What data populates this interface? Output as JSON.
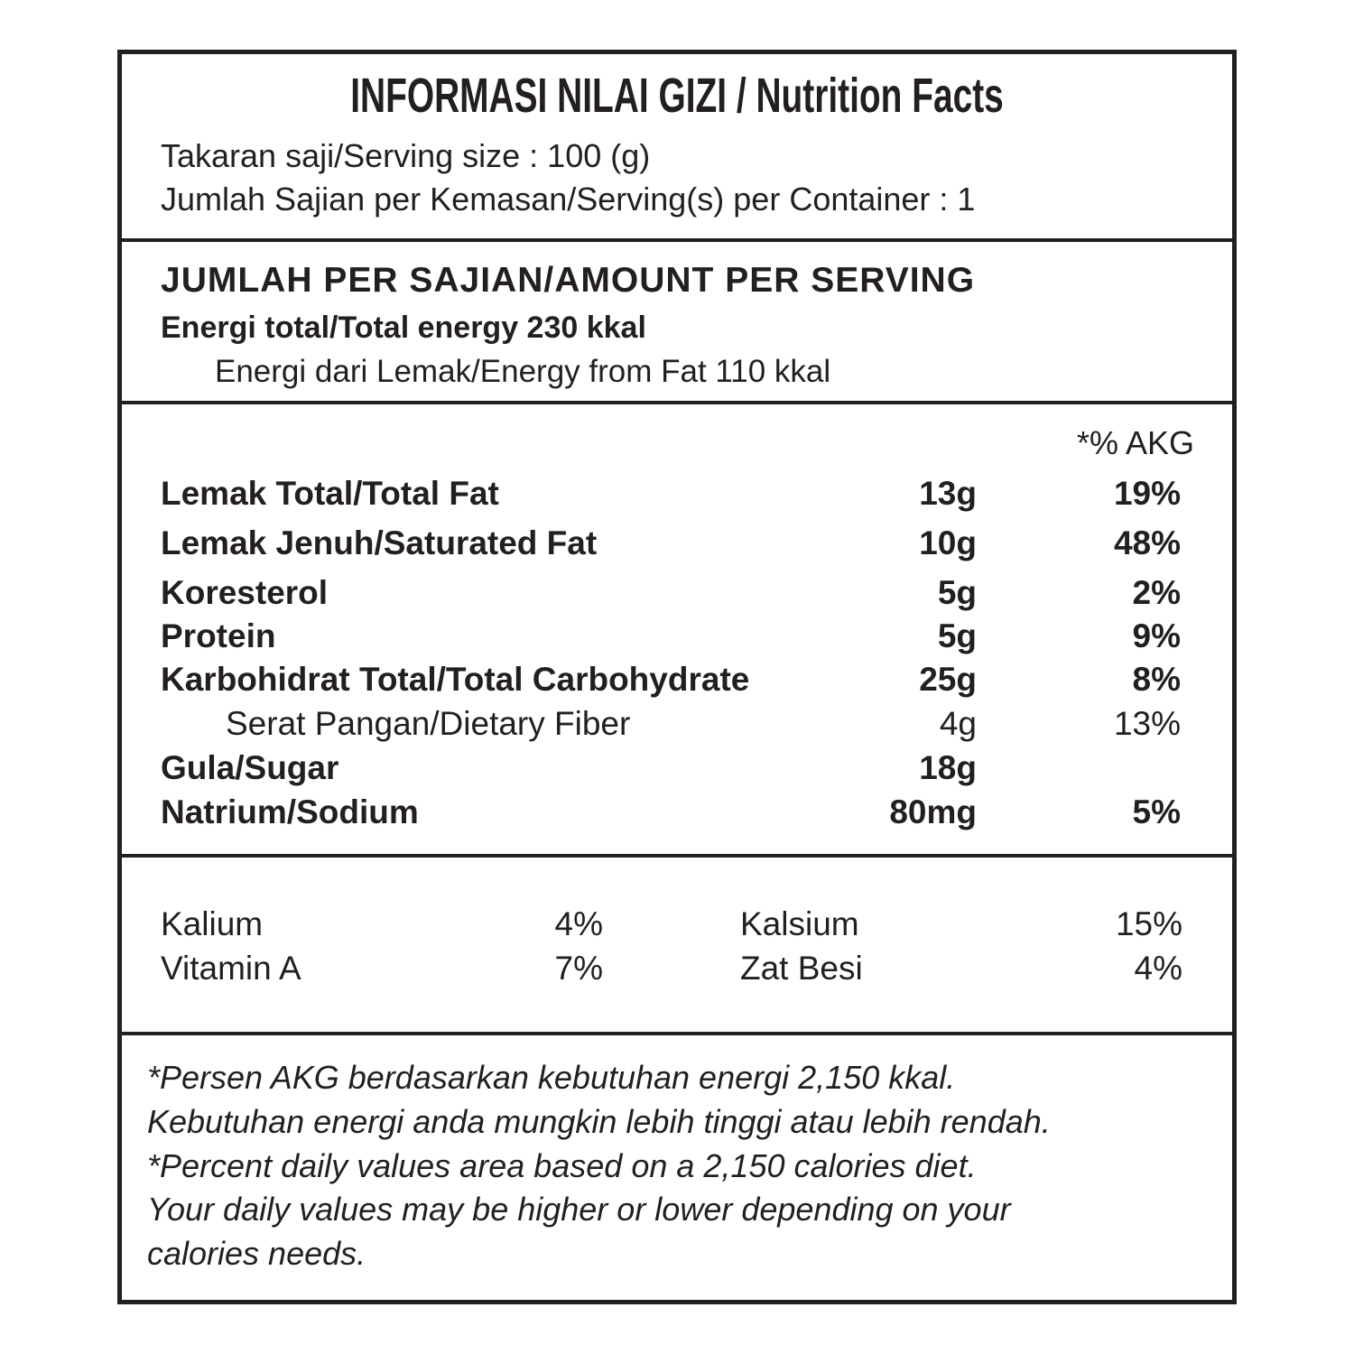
{
  "header": {
    "title": "INFORMASI NILAI GIZI / Nutrition Facts",
    "serving_size": "Takaran saji/Serving size : 100 (g)",
    "servings_per_container": "Jumlah Sajian per Kemasan/Serving(s) per Container : 1"
  },
  "amount": {
    "heading": "JUMLAH PER SAJIAN/AMOUNT PER SERVING",
    "total_energy": "Energi total/Total energy 230 kkal",
    "energy_from_fat": "Energi dari Lemak/Energy from Fat 110 kkal"
  },
  "nutrients": {
    "akg_header": "*% AKG",
    "rows": [
      {
        "label": "Lemak Total/Total Fat",
        "amount": "13g",
        "akg": "19%"
      },
      {
        "label": "Lemak Jenuh/Saturated Fat",
        "amount": "10g",
        "akg": "48%"
      },
      {
        "label": "Koresterol",
        "amount": "5g",
        "akg": "2%"
      },
      {
        "label": "Protein",
        "amount": "5g",
        "akg": "9%"
      },
      {
        "label": "Karbohidrat Total/Total Carbohydrate",
        "amount": "25g",
        "akg": "8%"
      },
      {
        "label": "Serat Pangan/Dietary Fiber",
        "amount": "4g",
        "akg": "13%",
        "sub": true
      },
      {
        "label": "Gula/Sugar",
        "amount": "18g"
      },
      {
        "label": "Natrium/Sodium",
        "amount": "80mg",
        "akg": "5%"
      }
    ]
  },
  "minerals": {
    "rows": [
      [
        {
          "label": "Kalium",
          "akg": "4%"
        },
        {
          "label": "Kalsium",
          "akg": "15%"
        }
      ],
      [
        {
          "label": "Vitamin A",
          "akg": "7%"
        },
        {
          "label": "Zat Besi",
          "akg": "4%"
        }
      ]
    ]
  },
  "footnote": {
    "lines": [
      "*Persen AKG berdasarkan kebutuhan energi 2,150 kkal.",
      "Kebutuhan energi anda mungkin lebih tinggi atau lebih rendah.",
      "*Percent daily values area based on a 2,150 calories diet.",
      "Your daily values may be higher or lower depending on your",
      "calories needs."
    ]
  }
}
